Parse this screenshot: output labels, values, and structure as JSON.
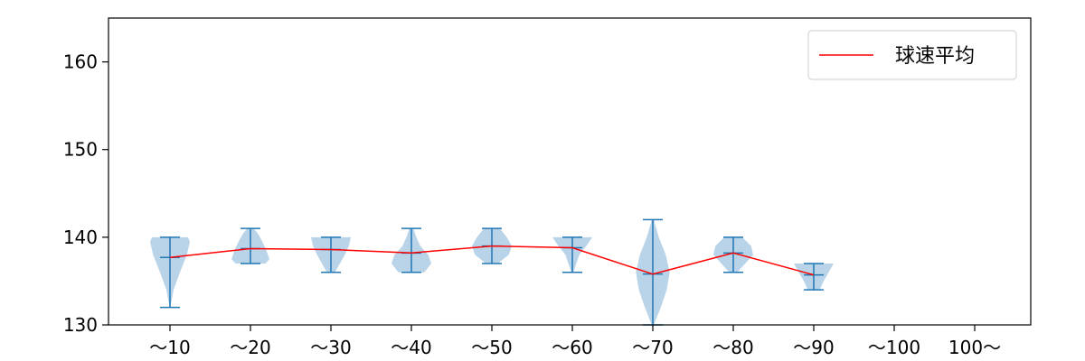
{
  "chart_data": {
    "type": "violin",
    "categories": [
      "〜10",
      "〜20",
      "〜30",
      "〜40",
      "〜50",
      "〜60",
      "〜70",
      "〜80",
      "〜90",
      "〜100",
      "100〜"
    ],
    "ylim": [
      130,
      165
    ],
    "yticks": [
      130,
      140,
      150,
      160
    ],
    "legend": {
      "position": "top-right",
      "entries": [
        "球速平均"
      ]
    },
    "colors": {
      "violin_fill": "#b9d3e8",
      "whisker": "#1f77b4",
      "mean_line": "#ff0000",
      "axis": "#000000"
    },
    "series": [
      {
        "name": "球速平均",
        "values": [
          137.7,
          138.7,
          138.6,
          138.2,
          139.0,
          138.8,
          135.8,
          138.2,
          135.7,
          null,
          null
        ]
      }
    ],
    "distributions": [
      {
        "category": "〜10",
        "min": 132,
        "max": 140,
        "mean": 137.7,
        "profile": [
          [
            132,
            0.02
          ],
          [
            134,
            0.18
          ],
          [
            136,
            0.5
          ],
          [
            138,
            0.85
          ],
          [
            139.5,
            1.0
          ],
          [
            140,
            0.9
          ]
        ]
      },
      {
        "category": "〜20",
        "min": 137,
        "max": 141,
        "mean": 138.7,
        "profile": [
          [
            137,
            0.75
          ],
          [
            137.5,
            0.95
          ],
          [
            138.5,
            0.8
          ],
          [
            139.5,
            0.6
          ],
          [
            140.5,
            0.35
          ],
          [
            141,
            0.15
          ]
        ]
      },
      {
        "category": "〜30",
        "min": 136,
        "max": 140,
        "mean": 138.6,
        "profile": [
          [
            136,
            0.2
          ],
          [
            137,
            0.45
          ],
          [
            138,
            0.7
          ],
          [
            139,
            0.9
          ],
          [
            140,
            1.0
          ]
        ]
      },
      {
        "category": "〜40",
        "min": 136,
        "max": 141,
        "mean": 138.2,
        "profile": [
          [
            136,
            0.65
          ],
          [
            137,
            1.0
          ],
          [
            138,
            0.85
          ],
          [
            139,
            0.45
          ],
          [
            140,
            0.25
          ],
          [
            141,
            0.1
          ]
        ]
      },
      {
        "category": "〜50",
        "min": 137,
        "max": 141,
        "mean": 139.0,
        "profile": [
          [
            137,
            0.3
          ],
          [
            138,
            0.85
          ],
          [
            139,
            1.0
          ],
          [
            140,
            0.75
          ],
          [
            141,
            0.4
          ]
        ]
      },
      {
        "category": "〜60",
        "min": 136,
        "max": 140,
        "mean": 138.8,
        "profile": [
          [
            136,
            0.05
          ],
          [
            137,
            0.2
          ],
          [
            138,
            0.35
          ],
          [
            139,
            0.7
          ],
          [
            140,
            1.0
          ]
        ]
      },
      {
        "category": "〜70",
        "min": 130,
        "max": 142,
        "mean": 135.8,
        "profile": [
          [
            130,
            0.05
          ],
          [
            132,
            0.4
          ],
          [
            134,
            0.7
          ],
          [
            136,
            0.85
          ],
          [
            138,
            0.65
          ],
          [
            140,
            0.3
          ],
          [
            142,
            0.05
          ]
        ]
      },
      {
        "category": "〜80",
        "min": 136,
        "max": 140,
        "mean": 138.2,
        "profile": [
          [
            136,
            0.2
          ],
          [
            137,
            0.6
          ],
          [
            138,
            1.0
          ],
          [
            139,
            0.9
          ],
          [
            140,
            0.45
          ]
        ]
      },
      {
        "category": "〜90",
        "min": 134,
        "max": 137,
        "mean": 135.7,
        "profile": [
          [
            134,
            0.3
          ],
          [
            135,
            0.5
          ],
          [
            136,
            0.75
          ],
          [
            137,
            1.0
          ]
        ]
      }
    ]
  }
}
